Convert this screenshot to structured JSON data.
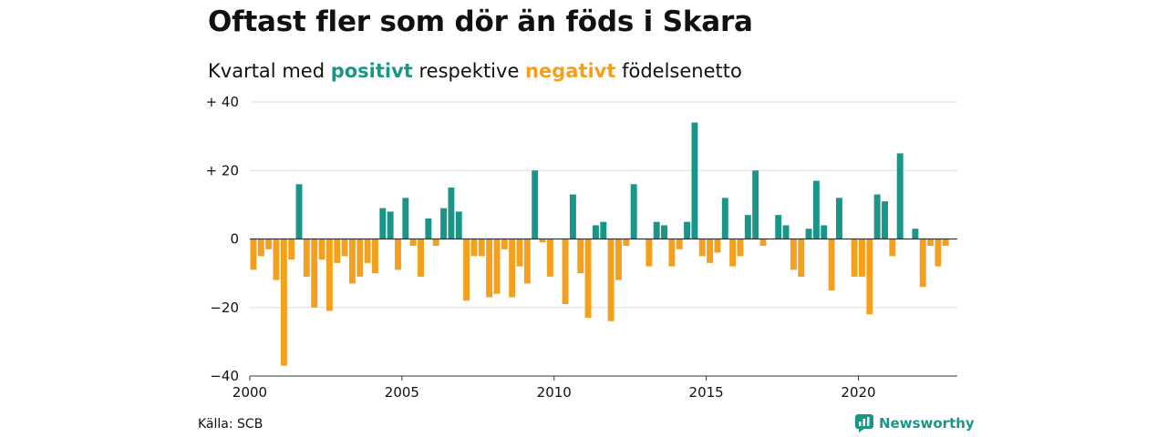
{
  "header": {
    "title": "Oftast fler som dör än föds i Skara",
    "subtitle_prefix": "Kvartal med ",
    "subtitle_positive": "positivt",
    "subtitle_middle": " respektive ",
    "subtitle_negative": "negativt",
    "subtitle_suffix": " födelsenetto"
  },
  "footer": {
    "source": "Källa: SCB",
    "logo_text": "Newsworthy",
    "logo_icon": "newsworthy-logo-icon"
  },
  "colors": {
    "positive": "#1a9688",
    "negative": "#f5a01d",
    "grid": "#dddddd",
    "axis": "#333333"
  },
  "chart_data": {
    "type": "bar",
    "x_start": 2000,
    "x_step": 0.25,
    "xlim": [
      2000,
      2023.25
    ],
    "ylim": [
      -40,
      40
    ],
    "y_ticks": [
      {
        "value": 40,
        "label": "+ 40"
      },
      {
        "value": 20,
        "label": "+ 20"
      },
      {
        "value": 0,
        "label": "0"
      },
      {
        "value": -20,
        "label": "−20"
      },
      {
        "value": -40,
        "label": "−40"
      }
    ],
    "x_ticks": [
      {
        "value": 2000,
        "label": "2000"
      },
      {
        "value": 2005,
        "label": "2005"
      },
      {
        "value": 2010,
        "label": "2010"
      },
      {
        "value": 2015,
        "label": "2015"
      },
      {
        "value": 2020,
        "label": "2020"
      }
    ],
    "grid": true,
    "values": [
      -9,
      -5,
      -3,
      -12,
      -37,
      -6,
      16,
      -11,
      -20,
      -6,
      -21,
      -7,
      -5,
      -13,
      -11,
      -7,
      -10,
      9,
      8,
      -9,
      12,
      -2,
      -11,
      6,
      -2,
      9,
      15,
      8,
      -18,
      -5,
      -5,
      -17,
      -16,
      -3,
      -17,
      -8,
      -13,
      20,
      -1,
      -11,
      0,
      -19,
      13,
      -10,
      -23,
      4,
      5,
      -24,
      -12,
      -2,
      16,
      0,
      -8,
      5,
      4,
      -8,
      -3,
      5,
      34,
      -5,
      -7,
      -4,
      12,
      -8,
      -5,
      7,
      20,
      -2,
      0,
      7,
      4,
      -9,
      -11,
      3,
      17,
      4,
      -15,
      12,
      0,
      -11,
      -11,
      -22,
      13,
      11,
      -5,
      25,
      0,
      3,
      -14,
      -2,
      -8,
      -2
    ]
  }
}
